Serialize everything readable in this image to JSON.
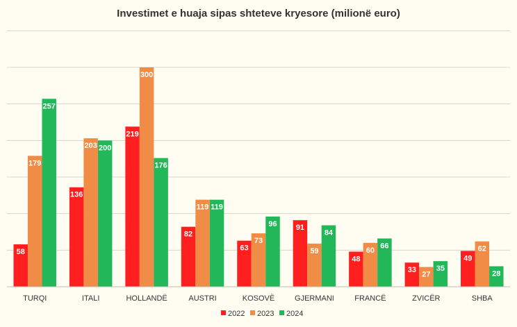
{
  "chart_data": {
    "type": "bar",
    "title": "Investimet e huaja sipas shteteve kryesore (milionë euro)",
    "xlabel": "",
    "ylabel": "",
    "categories": [
      "TURQI",
      "ITALI",
      "HOLLANDË",
      "AUSTRI",
      "KOSOVË",
      "GJERMANI",
      "FRANCË",
      "ZVICËR",
      "SHBA"
    ],
    "series": [
      {
        "name": "2022",
        "color": "#ff1f1f",
        "values": [
          58,
          136,
          219,
          82,
          63,
          91,
          48,
          33,
          49
        ]
      },
      {
        "name": "2023",
        "color": "#f08c45",
        "values": [
          179,
          203,
          300,
          119,
          73,
          59,
          60,
          27,
          62
        ]
      },
      {
        "name": "2024",
        "color": "#22b85a",
        "values": [
          257,
          200,
          176,
          119,
          96,
          84,
          66,
          35,
          28
        ]
      }
    ],
    "ylim": [
      0,
      300
    ],
    "grid": true,
    "legend": "bottom",
    "data_labels": true
  }
}
